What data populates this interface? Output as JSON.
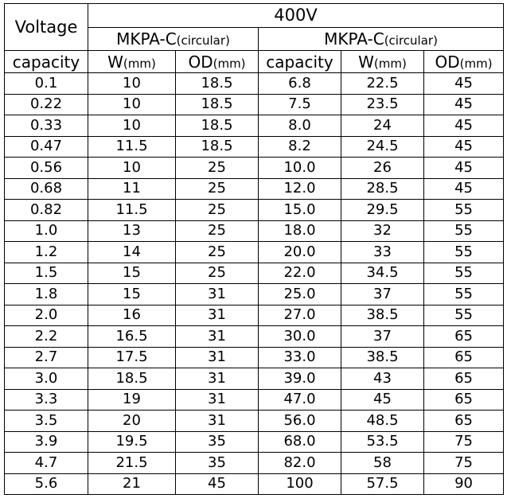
{
  "header": {
    "voltage_label": "Voltage",
    "voltage_value": "400V",
    "series_left_main": "MKPA-C",
    "series_left_sub": "(circular)",
    "series_right_main": "MKPA-C",
    "series_right_sub": "(circular)",
    "col_capacity": "capacity",
    "col_w_main": "W",
    "col_w_sub": "(mm)",
    "col_od_main": "OD",
    "col_od_sub": "(mm)",
    "col_capacity_right": "capacity",
    "col_w_main_right": "W",
    "col_w_sub_right": "(mm)",
    "col_od_main_right": "OD",
    "col_od_sub_right": "(mm)"
  },
  "rows": [
    [
      "0.1",
      "10",
      "18.5",
      "6.8",
      "22.5",
      "45"
    ],
    [
      "0.22",
      "10",
      "18.5",
      "7.5",
      "23.5",
      "45"
    ],
    [
      "0.33",
      "10",
      "18.5",
      "8.0",
      "24",
      "45"
    ],
    [
      "0.47",
      "11.5",
      "18.5",
      "8.2",
      "24.5",
      "45"
    ],
    [
      "0.56",
      "10",
      "25",
      "10.0",
      "26",
      "45"
    ],
    [
      "0.68",
      "11",
      "25",
      "12.0",
      "28.5",
      "45"
    ],
    [
      "0.82",
      "11.5",
      "25",
      "15.0",
      "29.5",
      "55"
    ],
    [
      "1.0",
      "13",
      "25",
      "18.0",
      "32",
      "55"
    ],
    [
      "1.2",
      "14",
      "25",
      "20.0",
      "33",
      "55"
    ],
    [
      "1.5",
      "15",
      "25",
      "22.0",
      "34.5",
      "55"
    ],
    [
      "1.8",
      "15",
      "31",
      "25.0",
      "37",
      "55"
    ],
    [
      "2.0",
      "16",
      "31",
      "27.0",
      "38.5",
      "55"
    ],
    [
      "2.2",
      "16.5",
      "31",
      "30.0",
      "37",
      "65"
    ],
    [
      "2.7",
      "17.5",
      "31",
      "33.0",
      "38.5",
      "65"
    ],
    [
      "3.0",
      "18.5",
      "31",
      "39.0",
      "43",
      "65"
    ],
    [
      "3.3",
      "19",
      "31",
      "47.0",
      "45",
      "65"
    ],
    [
      "3.5",
      "20",
      "31",
      "56.0",
      "48.5",
      "65"
    ],
    [
      "3.9",
      "19.5",
      "35",
      "68.0",
      "53.5",
      "75"
    ],
    [
      "4.7",
      "21.5",
      "35",
      "82.0",
      "58",
      "75"
    ],
    [
      "5.6",
      "21",
      "45",
      "100",
      "57.5",
      "90"
    ]
  ]
}
